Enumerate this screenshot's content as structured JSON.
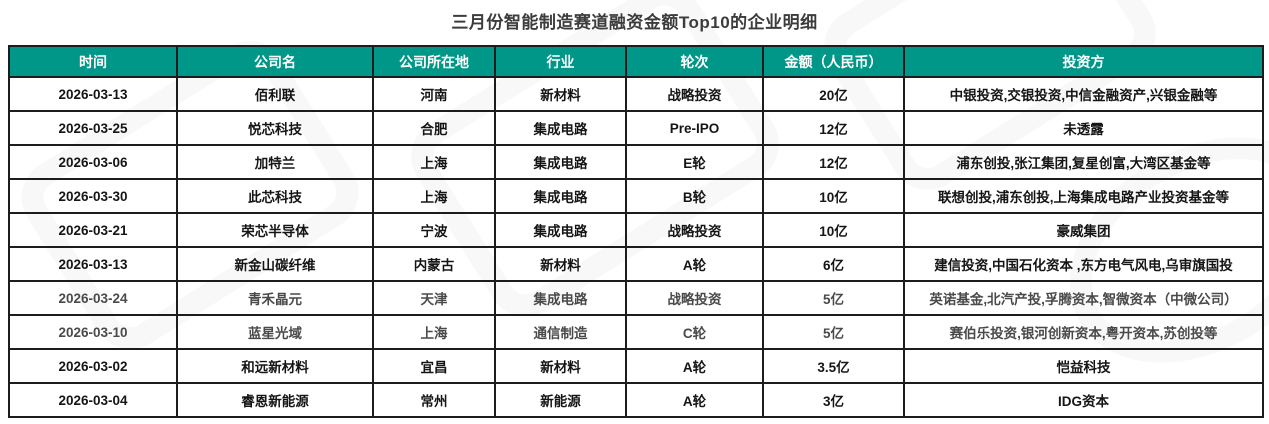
{
  "title": "三月份智能制造赛道融资金额Top10的企业明细",
  "colors": {
    "header_bg": "#009688",
    "header_text": "#ffffff",
    "border": "#1c1c1c",
    "body_text": "#151515",
    "title_text": "#3c3c3c"
  },
  "table": {
    "columns": [
      {
        "label": "时间"
      },
      {
        "label": "公司名"
      },
      {
        "label": "公司所在地"
      },
      {
        "label": "行业"
      },
      {
        "label": "轮次"
      },
      {
        "label": "金额（人民币）"
      },
      {
        "label": "投资方"
      }
    ],
    "rows": [
      {
        "muted": false,
        "cells": [
          "2026-03-13",
          "佰利联",
          "河南",
          "新材料",
          "战略投资",
          "20亿",
          "中银投资,交银投资,中信金融资产,兴银金融等"
        ]
      },
      {
        "muted": false,
        "cells": [
          "2026-03-25",
          "悦芯科技",
          "合肥",
          "集成电路",
          "Pre-IPO",
          "12亿",
          "未透露"
        ]
      },
      {
        "muted": false,
        "cells": [
          "2026-03-06",
          "加特兰",
          "上海",
          "集成电路",
          "E轮",
          "12亿",
          "浦东创投,张江集团,复星创富,大湾区基金等"
        ]
      },
      {
        "muted": false,
        "cells": [
          "2026-03-30",
          "此芯科技",
          "上海",
          "集成电路",
          "B轮",
          "10亿",
          "联想创投,浦东创投,上海集成电路产业投资基金等"
        ]
      },
      {
        "muted": false,
        "cells": [
          "2026-03-21",
          "荣芯半导体",
          "宁波",
          "集成电路",
          "战略投资",
          "10亿",
          "豪威集团"
        ]
      },
      {
        "muted": false,
        "cells": [
          "2026-03-13",
          "新金山碳纤维",
          "内蒙古",
          "新材料",
          "A轮",
          "6亿",
          "建信投资,中国石化资本 ,东方电气风电,乌审旗国投"
        ]
      },
      {
        "muted": true,
        "cells": [
          "2026-03-24",
          "青禾晶元",
          "天津",
          "集成电路",
          "战略投资",
          "5亿",
          "英诺基金,北汽产投,孚腾资本,智微资本（中微公司）"
        ]
      },
      {
        "muted": true,
        "cells": [
          "2026-03-10",
          "蓝星光域",
          "上海",
          "通信制造",
          "C轮",
          "5亿",
          "赛伯乐投资,银河创新资本,粤开资本,苏创投等"
        ]
      },
      {
        "muted": false,
        "cells": [
          "2026-03-02",
          "和远新材料",
          "宜昌",
          "新材料",
          "A轮",
          "3.5亿",
          "恺益科技"
        ]
      },
      {
        "muted": false,
        "cells": [
          "2026-03-04",
          "睿恩新能源",
          "常州",
          "新能源",
          "A轮",
          "3亿",
          "IDG资本"
        ]
      }
    ]
  }
}
